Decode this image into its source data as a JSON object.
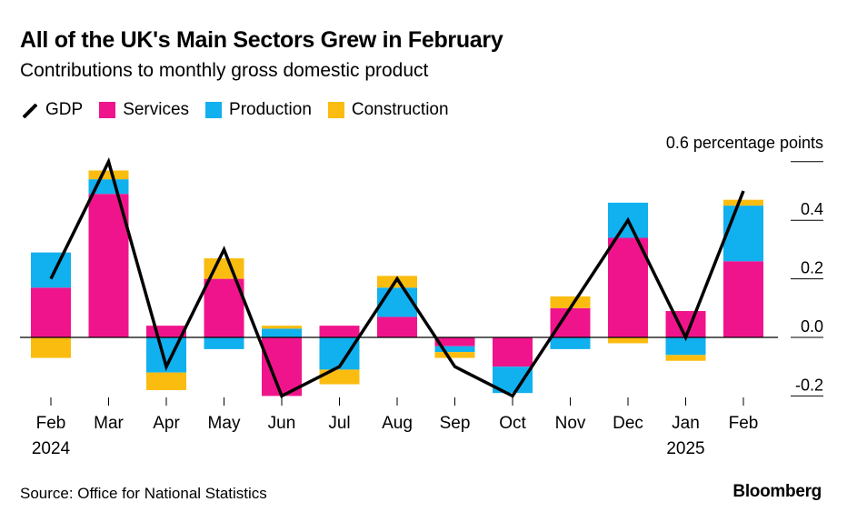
{
  "chart_data": {
    "type": "bar",
    "title": "All of the UK's Main Sectors Grew in February",
    "subtitle": "Contributions to monthly gross domestic product",
    "unit_label": "0.6 percentage points",
    "categories": [
      "Feb",
      "Mar",
      "Apr",
      "May",
      "Jun",
      "Jul",
      "Aug",
      "Sep",
      "Oct",
      "Nov",
      "Dec",
      "Jan",
      "Feb"
    ],
    "year_labels": [
      "2024",
      "",
      "",
      "",
      "",
      "",
      "",
      "",
      "",
      "",
      "",
      "2025",
      ""
    ],
    "stacked": true,
    "series": [
      {
        "name": "Services",
        "color": "#f0148c",
        "values": [
          0.17,
          0.49,
          0.04,
          0.2,
          -0.2,
          0.04,
          0.07,
          -0.03,
          -0.1,
          0.1,
          0.34,
          0.09,
          0.26
        ]
      },
      {
        "name": "Production",
        "color": "#11b0ef",
        "values": [
          0.12,
          0.05,
          -0.12,
          -0.04,
          0.03,
          -0.11,
          0.1,
          -0.02,
          -0.09,
          -0.04,
          0.12,
          -0.06,
          0.19
        ]
      },
      {
        "name": "Construction",
        "color": "#fbbc10",
        "values": [
          -0.07,
          0.03,
          -0.06,
          0.07,
          0.01,
          -0.05,
          0.04,
          -0.02,
          0.0,
          0.04,
          -0.02,
          -0.02,
          0.02
        ]
      }
    ],
    "line_series": {
      "name": "GDP",
      "color": "#000000",
      "values": [
        0.2,
        0.6,
        -0.1,
        0.3,
        -0.2,
        -0.1,
        0.2,
        -0.1,
        -0.2,
        0.1,
        0.4,
        0.0,
        0.5
      ]
    },
    "y_ticks": [
      0.6,
      0.4,
      0.2,
      0.0,
      -0.2
    ],
    "y_tick_labels": [
      "",
      "0.4",
      "0.2",
      "0.0",
      "-0.2"
    ],
    "ylim": [
      -0.2,
      0.6
    ],
    "legend_position": "top-left",
    "grid": false
  },
  "source": "Source: Office for National Statistics",
  "brand": "Bloomberg"
}
